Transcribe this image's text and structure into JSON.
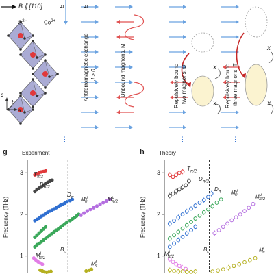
{
  "top": {
    "field_label": "B ∥ [110]",
    "b_label_left": "B",
    "b_label_mid": "B",
    "ion_o": "O²⁻",
    "ion_co": "Co²⁺",
    "axes": {
      "c": "c",
      "b": "b",
      "a": "a"
    },
    "afm_title": "Antiferromagnetic exchange",
    "afm_j": "J > 0",
    "unbound": "Unbound magnons, M",
    "bound2_a": "Repulsively bound",
    "bound2_b": "two magnons, D",
    "bound3_a": "Repulsively bound",
    "bound3_b": "three magnons, T",
    "cross": "x"
  },
  "panel_g": {
    "letter": "g",
    "title": "Experiment",
    "ylabel": "Frequency (THz)",
    "bc_label": "B",
    "bc_sub": "c",
    "series_labels": {
      "T": "T",
      "T_sub": "π/2",
      "D1": "D",
      "D1_sub": "π/2",
      "D2": "D",
      "D2_sub": "π",
      "M0": "M",
      "M0_sup": "u",
      "M0_sub": "0",
      "Mpi2u": "M",
      "Mpi2u_sup": "u",
      "Mpi2u_sub": "π/2",
      "Mpi2l": "M",
      "Mpi2l_sup": "l",
      "Mpi2l_sub": "π/2",
      "Mpil": "M",
      "Mpil_sup": "l",
      "Mpil_sub": "π"
    }
  },
  "panel_h": {
    "letter": "h",
    "title": "Theory",
    "ylabel": "Frequency (THz)",
    "bc_label": "B",
    "bc_sub": "c",
    "series_labels": {
      "T": "T",
      "T_sub": "π/2",
      "D1": "D",
      "D1_sub": "π/2",
      "D2": "D",
      "D2_sub": "π",
      "M0": "M",
      "M0_sup": "u",
      "M0_sub": "0",
      "Mpi2u": "M",
      "Mpi2u_sup": "u",
      "Mpi2u_sub": "π/2",
      "Mpi2l": "M",
      "Mpi2l_sup": "l",
      "Mpi2l_sub": "π/2",
      "Mpil": "M",
      "Mpil_sup": "l",
      "Mpil_sub": "π"
    }
  },
  "colors": {
    "arrow_blue": "#6aa2e0",
    "arrow_red": "#e05050",
    "octahedron": "#8d8fc6",
    "red_series": "#e0393b",
    "black_series": "#444444",
    "blue_series": "#2f6fd1",
    "green_series": "#3aa85a",
    "purple_series": "#b46ee0",
    "magenta_series": "#e27ee6",
    "olive_series": "#b5b020",
    "bound_fill": "#fbf3d0"
  },
  "chart_data": [
    {
      "panel": "g",
      "type": "scatter",
      "title": "Experiment",
      "ylabel": "Frequency (THz)",
      "ylim": [
        0.6,
        3.3
      ],
      "yticks": [
        1,
        2,
        3
      ],
      "xlim": [
        0,
        1
      ],
      "bc_x": 0.38,
      "series": [
        {
          "name": "T_π/2",
          "color": "#e0393b",
          "filled": true,
          "x": [
            0.07,
            0.09,
            0.11,
            0.13,
            0.15,
            0.17
          ],
          "y": [
            2.95,
            2.97,
            3.0,
            3.02,
            3.03,
            3.05
          ]
        },
        {
          "name": "D_π/2",
          "color": "#444444",
          "filled": true,
          "x": [
            0.07,
            0.09,
            0.11,
            0.13,
            0.15,
            0.17,
            0.19,
            0.21,
            0.23
          ],
          "y": [
            2.55,
            2.6,
            2.63,
            2.66,
            2.7,
            2.74,
            2.77,
            2.8,
            2.82
          ]
        },
        {
          "name": "D_π",
          "color": "#2f6fd1",
          "filled": true,
          "x": [
            0.07,
            0.09,
            0.11,
            0.13,
            0.15,
            0.17,
            0.19,
            0.21,
            0.23,
            0.25,
            0.27,
            0.29,
            0.31,
            0.33,
            0.35,
            0.37,
            0.4,
            0.42
          ],
          "y": [
            1.85,
            1.88,
            1.91,
            1.95,
            1.98,
            2.02,
            2.05,
            2.08,
            2.1,
            2.13,
            2.16,
            2.19,
            2.22,
            2.24,
            2.27,
            2.3,
            2.33,
            2.36
          ]
        },
        {
          "name": "M_0^u",
          "color": "#3aa85a",
          "filled": true,
          "x": [
            0.07,
            0.09,
            0.11,
            0.13,
            0.15,
            0.17,
            0.19,
            0.21,
            0.23,
            0.25,
            0.27,
            0.29,
            0.31,
            0.33,
            0.35,
            0.37,
            0.4,
            0.42,
            0.44,
            0.46,
            0.48
          ],
          "y": [
            1.22,
            1.27,
            1.3,
            1.34,
            1.38,
            1.42,
            1.46,
            1.5,
            1.54,
            1.58,
            1.62,
            1.65,
            1.69,
            1.73,
            1.77,
            1.81,
            1.85,
            1.89,
            1.92,
            1.96,
            2.0
          ]
        },
        {
          "name": "M_0^u upper",
          "color": "#3aa85a",
          "filled": true,
          "x": [
            0.07,
            0.09,
            0.11,
            0.13,
            0.15,
            0.17
          ],
          "y": [
            1.45,
            1.5,
            1.55,
            1.6,
            1.65,
            1.7
          ]
        },
        {
          "name": "M_π/2^u",
          "color": "#b46ee0",
          "filled": true,
          "x": [
            0.5,
            0.53,
            0.56,
            0.59,
            0.62,
            0.65,
            0.68,
            0.71,
            0.74,
            0.77
          ],
          "y": [
            1.98,
            2.03,
            2.08,
            2.12,
            2.16,
            2.2,
            2.24,
            2.28,
            2.32,
            2.36
          ]
        },
        {
          "name": "M_π/2^l",
          "color": "#e27ee6",
          "filled": true,
          "x": [
            0.06,
            0.08,
            0.1,
            0.12,
            0.14
          ],
          "y": [
            0.95,
            0.9,
            0.86,
            0.83,
            0.8
          ]
        },
        {
          "name": "M_π^l",
          "color": "#b5b020",
          "filled": true,
          "x": [
            0.12,
            0.14,
            0.16,
            0.18,
            0.2,
            0.22,
            0.55,
            0.58,
            0.6
          ],
          "y": [
            0.66,
            0.64,
            0.62,
            0.61,
            0.62,
            0.63,
            0.64,
            0.66,
            0.68
          ]
        }
      ]
    },
    {
      "panel": "h",
      "type": "scatter",
      "title": "Theory",
      "ylabel": "Frequency (THz)",
      "ylim": [
        0.6,
        3.3
      ],
      "yticks": [
        1,
        2,
        3
      ],
      "xlim": [
        0,
        1
      ],
      "bc_x": 0.42,
      "series": [
        {
          "name": "T_π/2",
          "color": "#e0393b",
          "filled": false,
          "x": [
            0.05,
            0.08,
            0.11,
            0.14,
            0.17
          ],
          "y": [
            2.95,
            2.9,
            2.95,
            3.0,
            3.03
          ]
        },
        {
          "name": "D_π/2",
          "color": "#444444",
          "filled": false,
          "x": [
            0.05,
            0.08,
            0.11,
            0.14,
            0.17,
            0.2,
            0.23
          ],
          "y": [
            2.45,
            2.5,
            2.55,
            2.6,
            2.65,
            2.7,
            2.8
          ]
        },
        {
          "name": "D_π",
          "color": "#2f6fd1",
          "filled": false,
          "x": [
            0.05,
            0.09,
            0.13,
            0.17,
            0.21,
            0.25,
            0.29,
            0.33,
            0.37,
            0.41,
            0.44
          ],
          "y": [
            1.78,
            1.85,
            1.93,
            2.0,
            2.07,
            2.14,
            2.21,
            2.28,
            2.34,
            2.42,
            2.5
          ]
        },
        {
          "name": "M_0^u",
          "color": "#3aa85a",
          "filled": false,
          "x": [
            0.05,
            0.09,
            0.13,
            0.17,
            0.21,
            0.25,
            0.29,
            0.33,
            0.37,
            0.41,
            0.45,
            0.49,
            0.53
          ],
          "y": [
            1.42,
            1.5,
            1.58,
            1.66,
            1.74,
            1.82,
            1.9,
            1.97,
            2.05,
            2.12,
            2.2,
            2.28,
            2.36
          ]
        },
        {
          "name": "M_0^u lower",
          "color": "#2f6fd1",
          "filled": false,
          "x": [
            0.05,
            0.09,
            0.13,
            0.17,
            0.21,
            0.25,
            0.29
          ],
          "y": [
            1.22,
            1.3,
            1.38,
            1.46,
            1.54,
            1.62,
            1.7
          ]
        },
        {
          "name": "M_π/2^u",
          "color": "#b46ee0",
          "filled": false,
          "x": [
            0.47,
            0.51,
            0.55,
            0.59,
            0.63,
            0.67,
            0.71,
            0.75,
            0.79,
            0.83
          ],
          "y": [
            1.55,
            1.62,
            1.7,
            1.78,
            1.86,
            1.93,
            2.0,
            2.08,
            2.16,
            2.25
          ]
        },
        {
          "name": "M_π/2^l",
          "color": "#e27ee6",
          "filled": false,
          "x": [
            0.05,
            0.08,
            0.11,
            0.14,
            0.17,
            0.2
          ],
          "y": [
            0.92,
            0.86,
            0.8,
            0.76,
            0.72,
            0.69
          ]
        },
        {
          "name": "M_π^l",
          "color": "#b5b020",
          "filled": false,
          "x": [
            0.05,
            0.09,
            0.13,
            0.17,
            0.21,
            0.25,
            0.29,
            0.45,
            0.5,
            0.55,
            0.6,
            0.65,
            0.7,
            0.75,
            0.8,
            0.85
          ],
          "y": [
            0.66,
            0.64,
            0.63,
            0.63,
            0.62,
            0.62,
            0.63,
            0.63,
            0.65,
            0.68,
            0.72,
            0.76,
            0.8,
            0.85,
            0.9,
            0.95
          ]
        }
      ]
    }
  ]
}
